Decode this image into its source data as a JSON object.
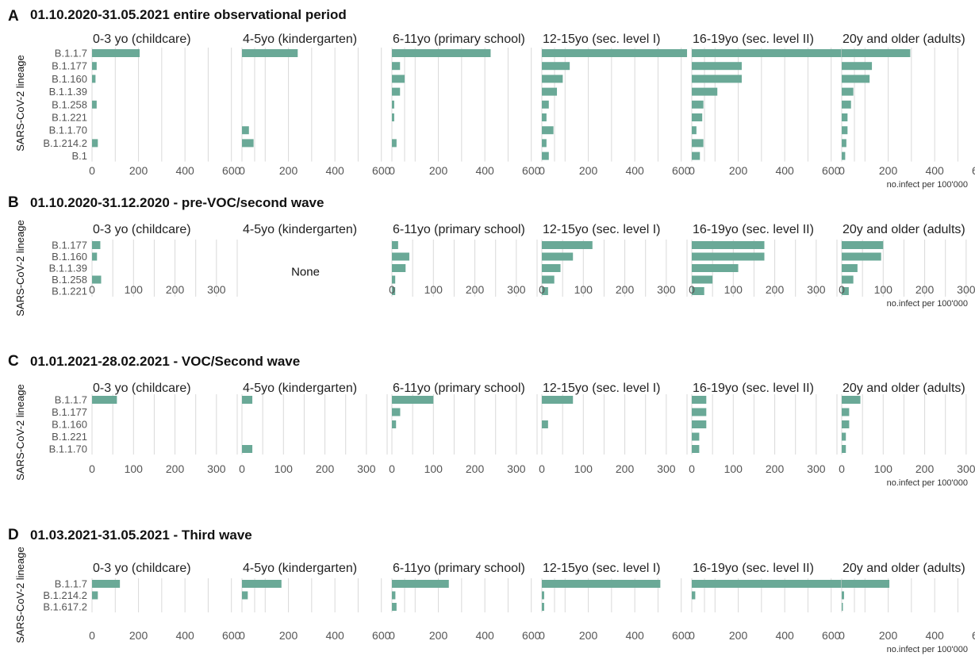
{
  "colors": {
    "bar": "#6aa997",
    "grid": "#d9d9d9",
    "text": "#222222"
  },
  "unit_label": "no.infect per 100'000",
  "chart_data": [
    {
      "type": "bar",
      "letter": "A",
      "title": "01.10.2020-31.05.2021 entire observational period",
      "ylabel": "SARS-CoV-2 lineage",
      "xlabel": "no.infect per 100'000",
      "orientation": "horizontal",
      "categories": [
        "B.1.1.7",
        "B.1.177",
        "B.1.160",
        "B.1.1.39",
        "B.1.258",
        "B.1.221",
        "B.1.1.70",
        "B.1.214.2",
        "B.1"
      ],
      "xlim": [
        0,
        700
      ],
      "xticks": [
        0,
        200,
        400,
        600
      ],
      "grid": true,
      "series": [
        {
          "name": "0-3 yo (childcare)",
          "values": [
            205,
            20,
            15,
            0,
            20,
            0,
            0,
            25,
            0
          ]
        },
        {
          "name": "4-5yo (kindergarten)",
          "values": [
            240,
            0,
            0,
            0,
            0,
            0,
            30,
            50,
            0
          ]
        },
        {
          "name": "6-11yo (primary school)",
          "values": [
            425,
            35,
            55,
            35,
            10,
            10,
            0,
            20,
            0
          ]
        },
        {
          "name": "12-15yo (sec. level I)",
          "values": [
            625,
            120,
            90,
            65,
            30,
            20,
            50,
            20,
            30
          ]
        },
        {
          "name": "16-19yo (sec. level II)",
          "values": [
            740,
            215,
            215,
            110,
            50,
            45,
            20,
            50,
            35
          ]
        },
        {
          "name": "20y and older (adults)",
          "values": [
            295,
            130,
            120,
            50,
            40,
            25,
            25,
            20,
            15
          ]
        }
      ]
    },
    {
      "type": "bar",
      "letter": "B",
      "title": "01.10.2020-31.12.2020 - pre-VOC/second wave",
      "ylabel": "SARS-CoV-2 lineage",
      "xlabel": "no.infect per 100'000",
      "orientation": "horizontal",
      "categories": [
        "B.1.177",
        "B.1.160",
        "B.1.1.39",
        "B.1.258",
        "B.1.221"
      ],
      "xlim": [
        0,
        350
      ],
      "xticks": [
        0,
        100,
        200,
        300
      ],
      "grid": true,
      "empty_label": "None",
      "series": [
        {
          "name": "0-3 yo (childcare)",
          "values": [
            20,
            12,
            0,
            22,
            0
          ]
        },
        {
          "name": "4-5yo (kindergarten)",
          "values": [
            0,
            0,
            0,
            0,
            0
          ],
          "empty": true
        },
        {
          "name": "6-11yo (primary school)",
          "values": [
            15,
            42,
            33,
            8,
            8
          ]
        },
        {
          "name": "12-15yo (sec. level I)",
          "values": [
            122,
            75,
            45,
            30,
            15
          ]
        },
        {
          "name": "16-19yo (sec. level II)",
          "values": [
            175,
            175,
            112,
            50,
            30
          ]
        },
        {
          "name": "20y and older (adults)",
          "values": [
            100,
            95,
            38,
            28,
            17
          ]
        }
      ]
    },
    {
      "type": "bar",
      "letter": "C",
      "title": "01.01.2021-28.02.2021 - VOC/Second wave",
      "ylabel": "SARS-CoV-2 lineage",
      "xlabel": "no.infect per 100'000",
      "orientation": "horizontal",
      "categories": [
        "B.1.1.7",
        "B.1.177",
        "B.1.160",
        "B.1.221",
        "B.1.1.70"
      ],
      "xlim": [
        0,
        350
      ],
      "xticks": [
        0,
        100,
        200,
        300
      ],
      "grid": true,
      "series": [
        {
          "name": "0-3 yo (childcare)",
          "values": [
            60,
            0,
            0,
            0,
            0
          ]
        },
        {
          "name": "4-5yo (kindergarten)",
          "values": [
            25,
            0,
            0,
            0,
            25
          ]
        },
        {
          "name": "6-11yo (primary school)",
          "values": [
            100,
            20,
            10,
            0,
            0
          ]
        },
        {
          "name": "12-15yo (sec. level I)",
          "values": [
            75,
            0,
            15,
            0,
            0
          ]
        },
        {
          "name": "16-19yo (sec. level II)",
          "values": [
            35,
            35,
            35,
            18,
            18
          ]
        },
        {
          "name": "20y and older (adults)",
          "values": [
            45,
            18,
            18,
            10,
            10
          ]
        }
      ]
    },
    {
      "type": "bar",
      "letter": "D",
      "title": "01.03.2021-31.05.2021 - Third wave",
      "ylabel": "SARS-CoV-2 lineage",
      "xlabel": "no.infect per 100'000",
      "orientation": "horizontal",
      "categories": [
        "B.1.1.7",
        "B.1.214.2",
        "B.1.617.2"
      ],
      "xlim": [
        0,
        700
      ],
      "xticks": [
        0,
        200,
        400,
        600
      ],
      "grid": true,
      "series": [
        {
          "name": "0-3 yo (childcare)",
          "values": [
            120,
            25,
            0
          ]
        },
        {
          "name": "4-5yo (kindergarten)",
          "values": [
            170,
            25,
            0
          ]
        },
        {
          "name": "6-11yo (primary school)",
          "values": [
            245,
            15,
            20
          ]
        },
        {
          "name": "12-15yo (sec. level I)",
          "values": [
            510,
            10,
            10
          ]
        },
        {
          "name": "16-19yo (sec. level II)",
          "values": [
            660,
            15,
            0
          ]
        },
        {
          "name": "20y and older (adults)",
          "values": [
            205,
            10,
            5
          ]
        }
      ]
    }
  ]
}
